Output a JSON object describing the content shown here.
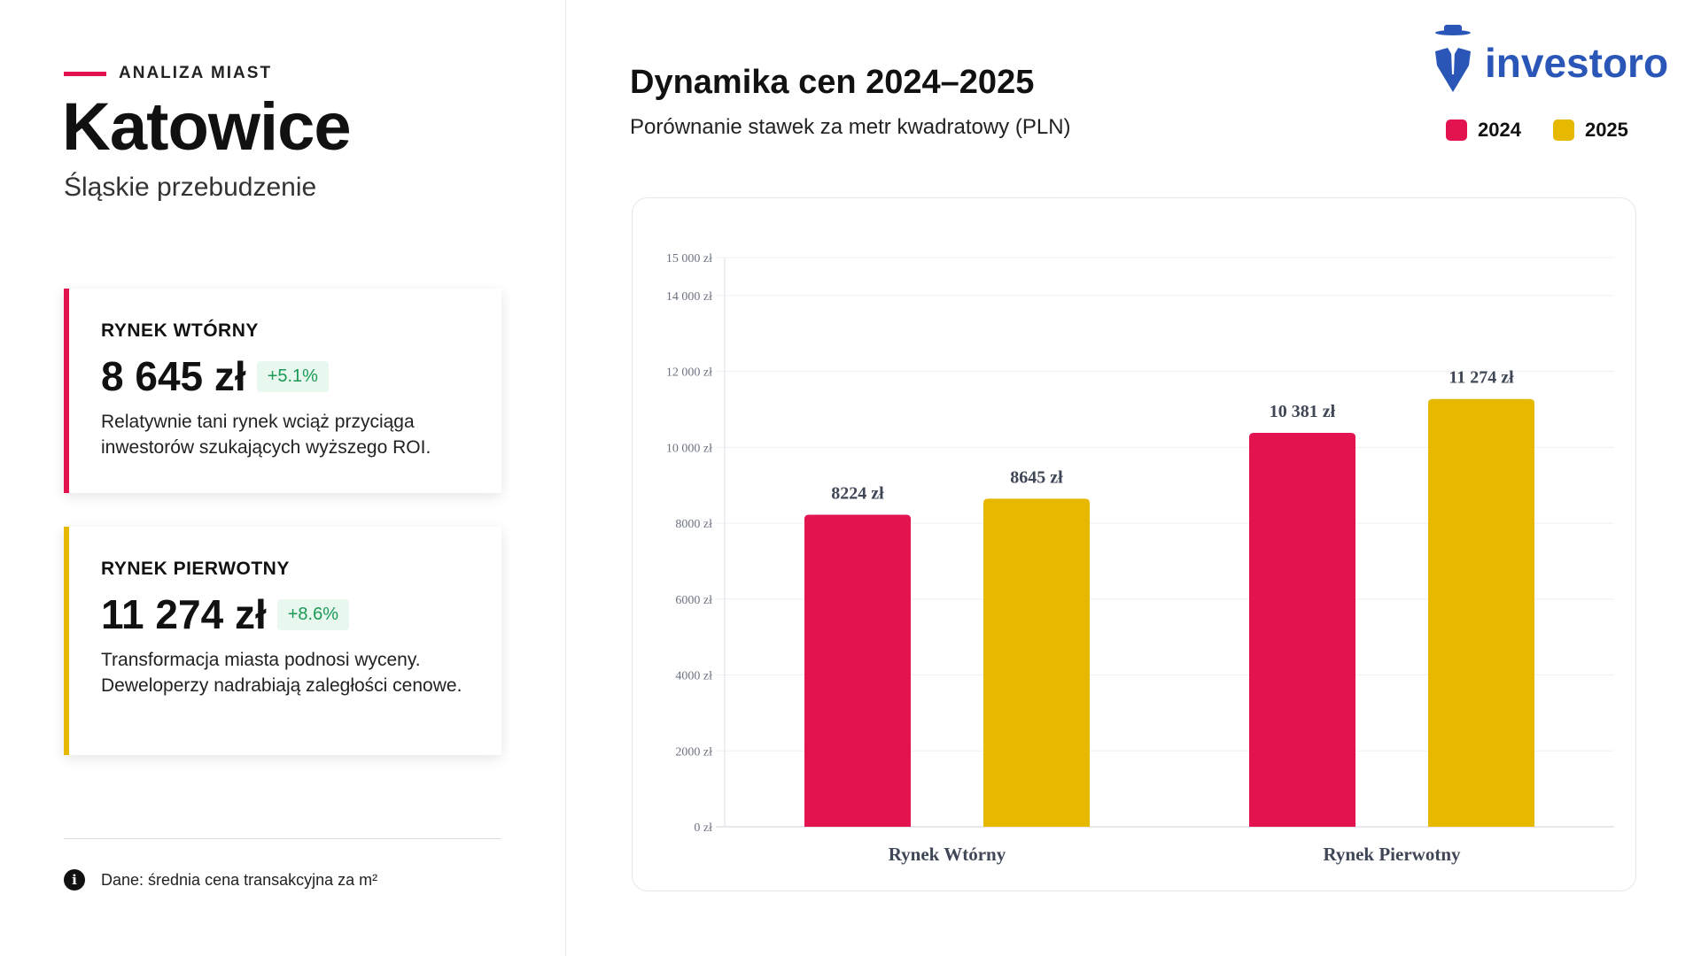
{
  "left": {
    "eyebrow": "ANALIZA MIAST",
    "city": "Katowice",
    "subtitle": "Śląskie przebudzenie",
    "cards": [
      {
        "title": "RYNEK WTÓRNY",
        "price": "8 645 zł",
        "change": "+5.1%",
        "desc": "Relatywnie tani rynek wciąż przyciąga inwestorów szukających wyższego ROI.",
        "color": "#e31350"
      },
      {
        "title": "RYNEK PIERWOTNY",
        "price": "11 274 zł",
        "change": "+8.6%",
        "desc": "Transformacja miasta podnosi wyceny. Deweloperzy nadrabiają zaległości cenowe.",
        "color": "#e6b800"
      }
    ],
    "footnote": "Dane: średnia cena transakcyjna za m²",
    "info_icon": "i"
  },
  "logo": {
    "text": "investoro",
    "color": "#2a56b8"
  },
  "chart_data": {
    "type": "bar",
    "title": "Dynamika cen 2024–2025",
    "subtitle": "Porównanie stawek za metr kwadratowy (PLN)",
    "categories": [
      "Rynek Wtórny",
      "Rynek Pierwotny"
    ],
    "series": [
      {
        "name": "2024",
        "color": "#e31350",
        "values": [
          8224,
          10381
        ],
        "labels": [
          "8224 zł",
          "10 381 zł"
        ]
      },
      {
        "name": "2025",
        "color": "#e6b800",
        "values": [
          8645,
          11274
        ],
        "labels": [
          "8645 zł",
          "11 274 zł"
        ]
      }
    ],
    "ylim": [
      0,
      15000
    ],
    "yticks": [
      0,
      2000,
      4000,
      6000,
      8000,
      10000,
      12000,
      14000,
      15000
    ],
    "ytick_labels": [
      "0 zł",
      "2000 zł",
      "4000 zł",
      "6000 zł",
      "8000 zł",
      "10 000 zł",
      "12 000 zł",
      "14 000 zł",
      "15 000 zł"
    ],
    "legend": "top-right",
    "grid": true
  }
}
